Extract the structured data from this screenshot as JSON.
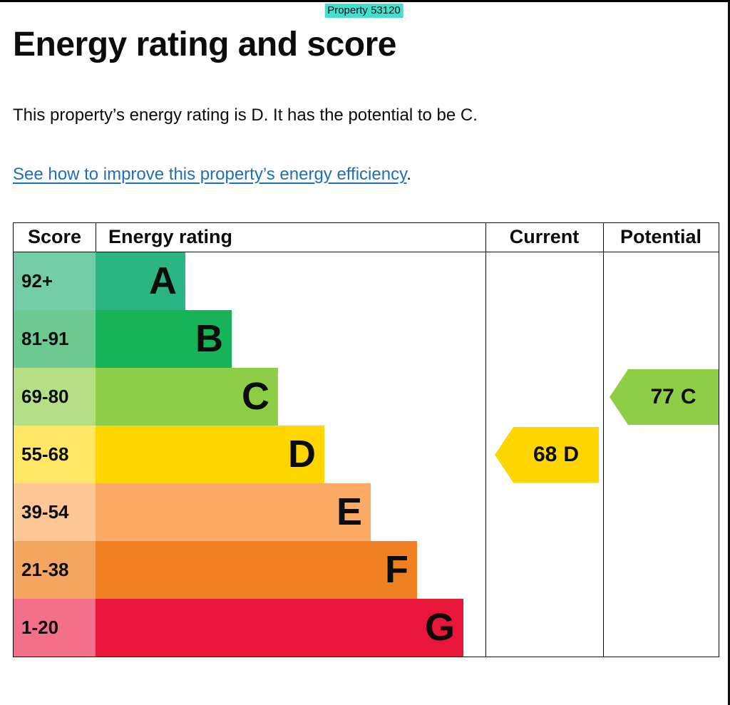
{
  "page": {
    "property_tag": "Property 53120",
    "heading": "Energy rating and score",
    "summary": "This property’s energy rating is D. It has the potential to be C.",
    "improve_link": "See how to improve this property’s energy efficiency",
    "improve_link_suffix": "."
  },
  "epc": {
    "headers": {
      "score": "Score",
      "rating": "Energy rating",
      "current": "Current",
      "potential": "Potential"
    },
    "bands": [
      {
        "score": "92+",
        "letter": "A"
      },
      {
        "score": "81-91",
        "letter": "B"
      },
      {
        "score": "69-80",
        "letter": "C"
      },
      {
        "score": "55-68",
        "letter": "D"
      },
      {
        "score": "39-54",
        "letter": "E"
      },
      {
        "score": "21-38",
        "letter": "F"
      },
      {
        "score": "1-20",
        "letter": "G"
      }
    ],
    "current": {
      "value": "68",
      "letter": "D"
    },
    "potential": {
      "value": "77",
      "letter": "C"
    }
  },
  "chart_data": {
    "type": "bar",
    "title": "Energy rating and score",
    "categories": [
      "A",
      "B",
      "C",
      "D",
      "E",
      "F",
      "G"
    ],
    "score_ranges": [
      "92+",
      "81-91",
      "69-80",
      "55-68",
      "39-54",
      "21-38",
      "1-20"
    ],
    "band_colors": [
      "#2ab582",
      "#17b459",
      "#8dce46",
      "#ffd500",
      "#fbaa65",
      "#ef8023",
      "#e9153b"
    ],
    "bar_relative_lengths": [
      1,
      2,
      3,
      4,
      5,
      6,
      7
    ],
    "current": {
      "score": 68,
      "rating": "D",
      "arrow_color": "#ffd500"
    },
    "potential": {
      "score": 77,
      "rating": "C",
      "arrow_color": "#8dce46"
    },
    "legend_position": "none",
    "grid": false
  }
}
